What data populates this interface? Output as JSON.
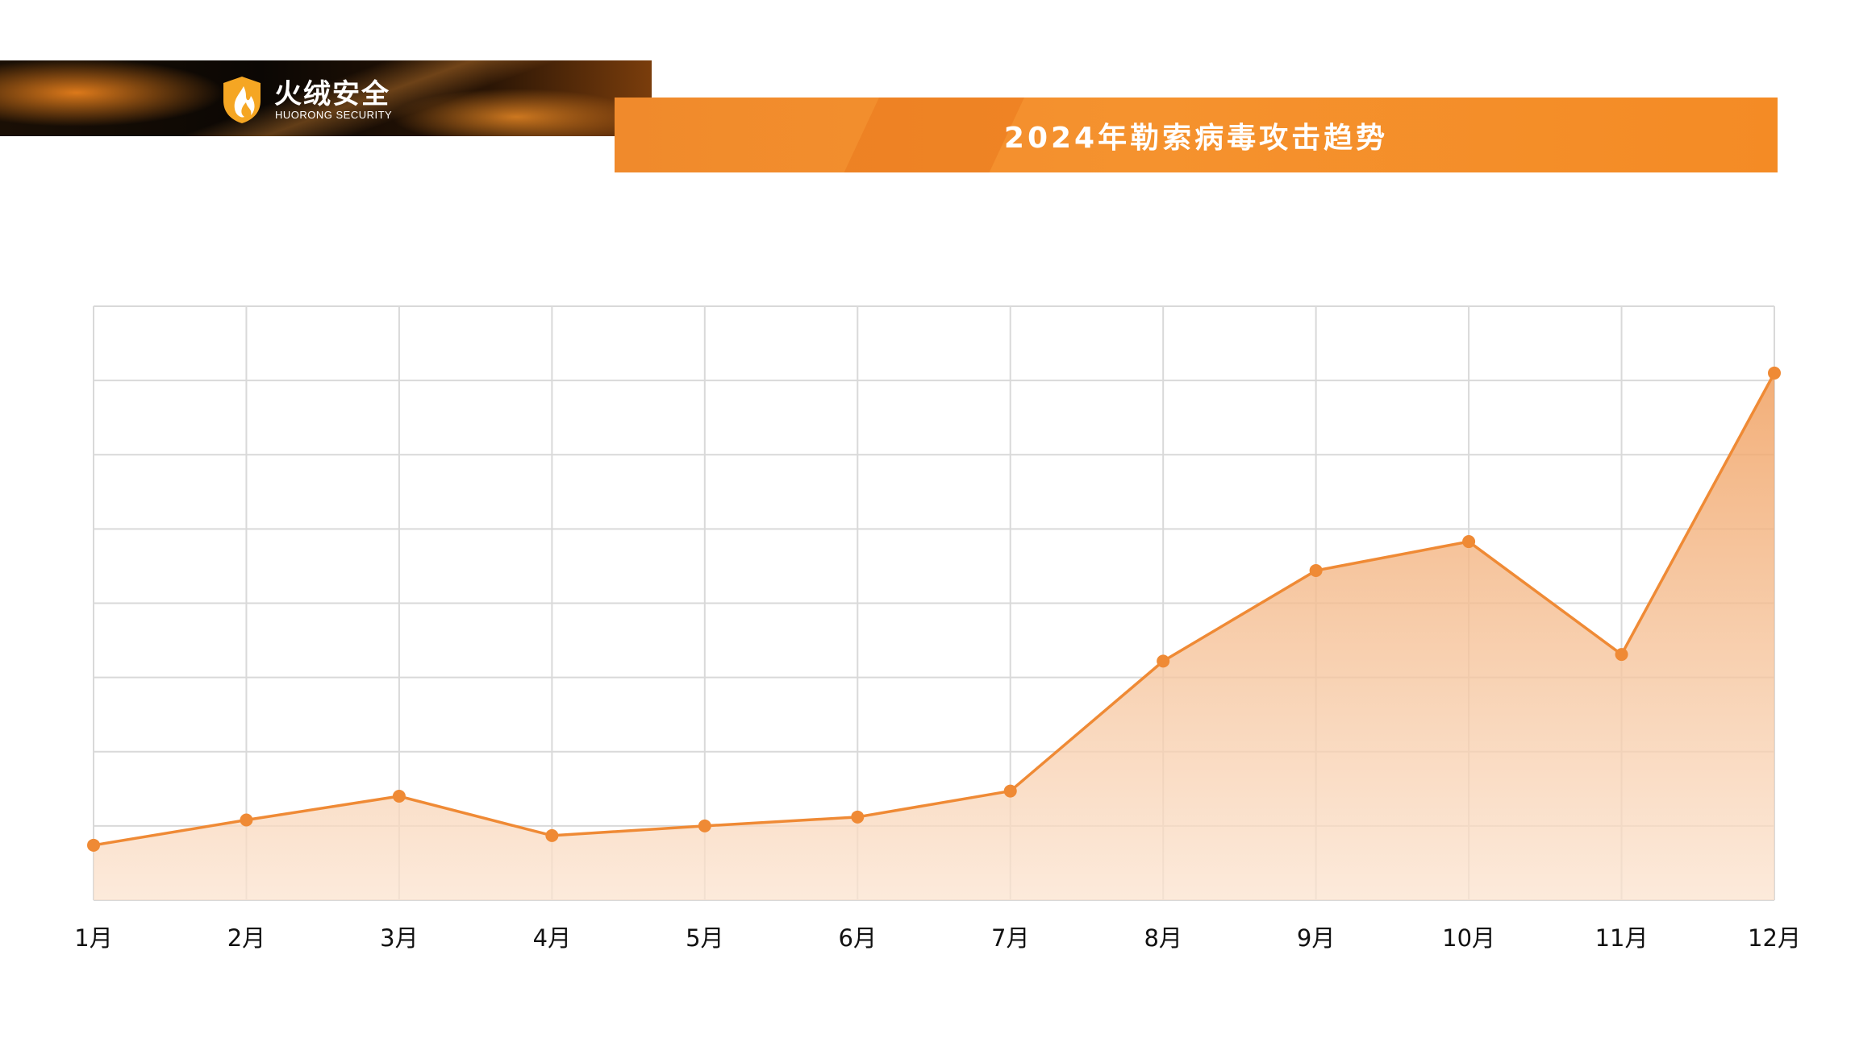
{
  "brand": {
    "name": "火绒安全",
    "subtitle": "HUORONG SECURITY"
  },
  "colors": {
    "accent": "#f08a2c",
    "line": "#ef8a35",
    "grid": "#d9d9d9"
  },
  "chart_data": {
    "type": "area",
    "title": "2024年勒索病毒攻击趋势",
    "xlabel": "",
    "ylabel": "",
    "categories": [
      "1月",
      "2月",
      "3月",
      "4月",
      "5月",
      "6月",
      "7月",
      "8月",
      "9月",
      "10月",
      "11月",
      "12月"
    ],
    "series": [
      {
        "values": [
          0.74,
          1.08,
          1.4,
          0.87,
          1.0,
          1.12,
          1.47,
          3.22,
          4.44,
          4.83,
          3.31,
          7.1
        ]
      }
    ],
    "ylim": [
      0,
      8
    ],
    "grid": true,
    "y_tick_labels_visible": false
  }
}
